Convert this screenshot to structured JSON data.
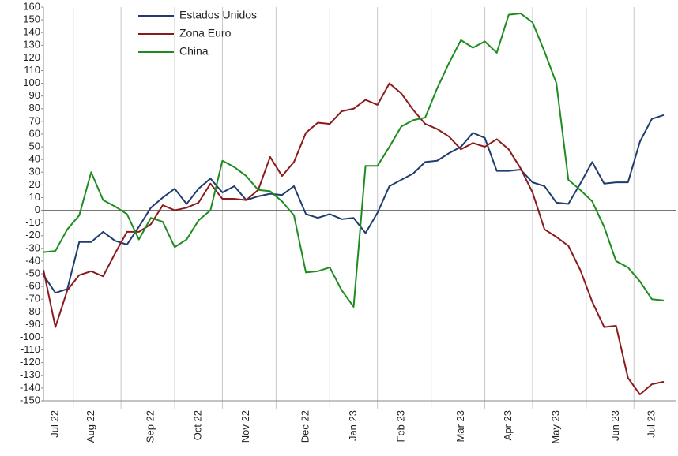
{
  "chart_data": {
    "type": "line",
    "categories": [
      null,
      "Jul 22",
      null,
      null,
      "Aug 22",
      null,
      null,
      null,
      null,
      "Sep 22",
      null,
      null,
      null,
      "Oct 22",
      null,
      null,
      null,
      "Nov 22",
      null,
      null,
      null,
      null,
      "Dec 22",
      null,
      null,
      null,
      "Jan 23",
      null,
      null,
      null,
      "Feb 23",
      null,
      null,
      null,
      null,
      "Mar 23",
      null,
      null,
      null,
      "Apr 23",
      null,
      null,
      null,
      "May 23",
      null,
      null,
      null,
      null,
      "Jun 23",
      null,
      null,
      "Jul 23",
      null
    ],
    "series": [
      {
        "name": "Estados Unidos",
        "color": "#1f3c6e",
        "values": [
          -51,
          -65,
          -62,
          -25,
          -25,
          -17,
          -24,
          -27,
          -13,
          2,
          10,
          17,
          5,
          17,
          25,
          14,
          19,
          8,
          11,
          13,
          12,
          19,
          -3,
          -6,
          -3,
          -7,
          -6,
          -18,
          -2,
          19,
          24,
          29,
          38,
          39,
          45,
          50,
          61,
          57,
          31,
          31,
          32,
          22,
          19,
          6,
          5,
          21,
          38,
          21,
          22,
          22,
          54,
          72,
          75
        ]
      },
      {
        "name": "Zona Euro",
        "color": "#8b1a1a",
        "values": [
          -47,
          -92,
          -63,
          -51,
          -48,
          -52,
          -34,
          -17,
          -17,
          -11,
          4,
          0,
          2,
          6,
          21,
          9,
          9,
          8,
          16,
          42,
          27,
          38,
          61,
          69,
          68,
          78,
          80,
          87,
          83,
          100,
          92,
          79,
          68,
          64,
          58,
          48,
          53,
          50,
          56,
          48,
          33,
          14,
          -15,
          -21,
          -28,
          -47,
          -72,
          -92,
          -91,
          -132,
          -145,
          -137,
          -135
        ]
      },
      {
        "name": "China",
        "color": "#1e8c1e",
        "values": [
          -33,
          -32,
          -15,
          -4,
          30,
          8,
          3,
          -3,
          -23,
          -6,
          -9,
          -29,
          -23,
          -8,
          0,
          39,
          34,
          27,
          16,
          15,
          7,
          -4,
          -49,
          -48,
          -45,
          -63,
          -76,
          35,
          35,
          50,
          66,
          71,
          73,
          96,
          116,
          134,
          128,
          133,
          124,
          154,
          155,
          148,
          125,
          100,
          24,
          16,
          7,
          -13,
          -40,
          -45,
          -56,
          -70,
          -71
        ]
      }
    ],
    "ylim": [
      -150,
      160
    ],
    "yticks": [
      160,
      150,
      140,
      130,
      120,
      110,
      100,
      90,
      80,
      70,
      60,
      50,
      40,
      30,
      20,
      10,
      0,
      -10,
      -20,
      -30,
      -40,
      -50,
      -60,
      -70,
      -80,
      -90,
      -100,
      -110,
      -120,
      -130,
      -140,
      -150
    ],
    "legend": "upper left"
  }
}
